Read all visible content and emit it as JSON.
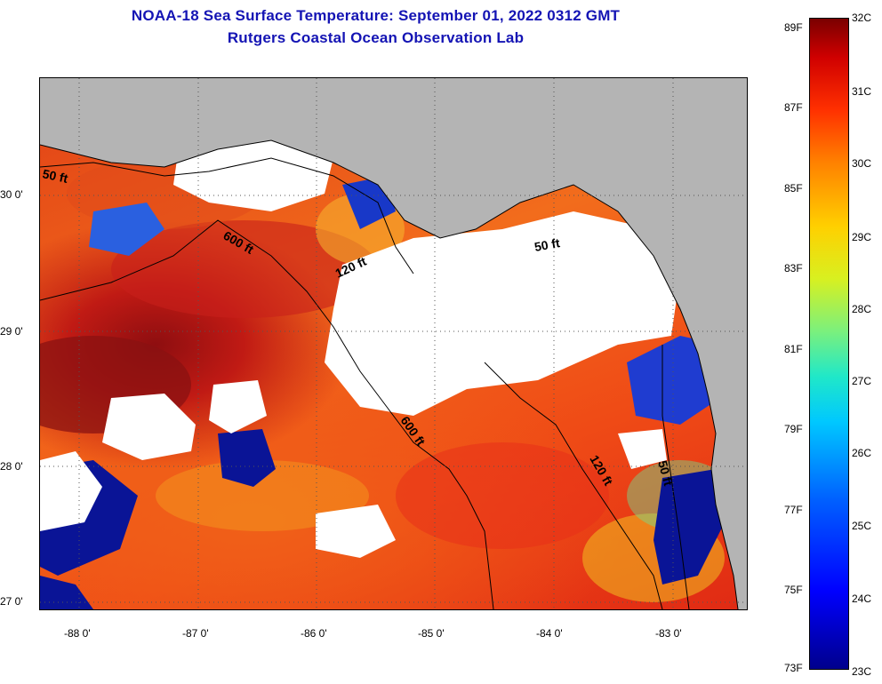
{
  "title": {
    "line1": "NOAA-18 Sea Surface Temperature:  September 01, 2022 0312 GMT",
    "line2": "Rutgers Coastal Ocean Observation Lab"
  },
  "axes": {
    "longitude_labels": [
      "-88 0'",
      "-87 0'",
      "-86 0'",
      "-85 0'",
      "-84 0'",
      "-83 0'"
    ],
    "latitude_labels": [
      "30 0'",
      "29 0'",
      "28 0'",
      "27 0'"
    ]
  },
  "contours": {
    "labels": [
      "50 ft",
      "600 ft",
      "120 ft",
      "50 ft",
      "600 ft",
      "120 ft",
      "50 ft"
    ]
  },
  "colorbar": {
    "fahrenheit": [
      "89F",
      "87F",
      "85F",
      "83F",
      "81F",
      "79F",
      "77F",
      "75F",
      "73F"
    ],
    "celsius": [
      "32C",
      "31C",
      "30C",
      "29C",
      "28C",
      "27C",
      "26C",
      "25C",
      "24C",
      "23C"
    ]
  },
  "colors": {
    "title": "#1414b4",
    "land": "#b4b4b4",
    "cloud": "#ffffff",
    "hot": "#8e0e10",
    "warm": "#f26c1c",
    "cool": "#0a1496"
  }
}
